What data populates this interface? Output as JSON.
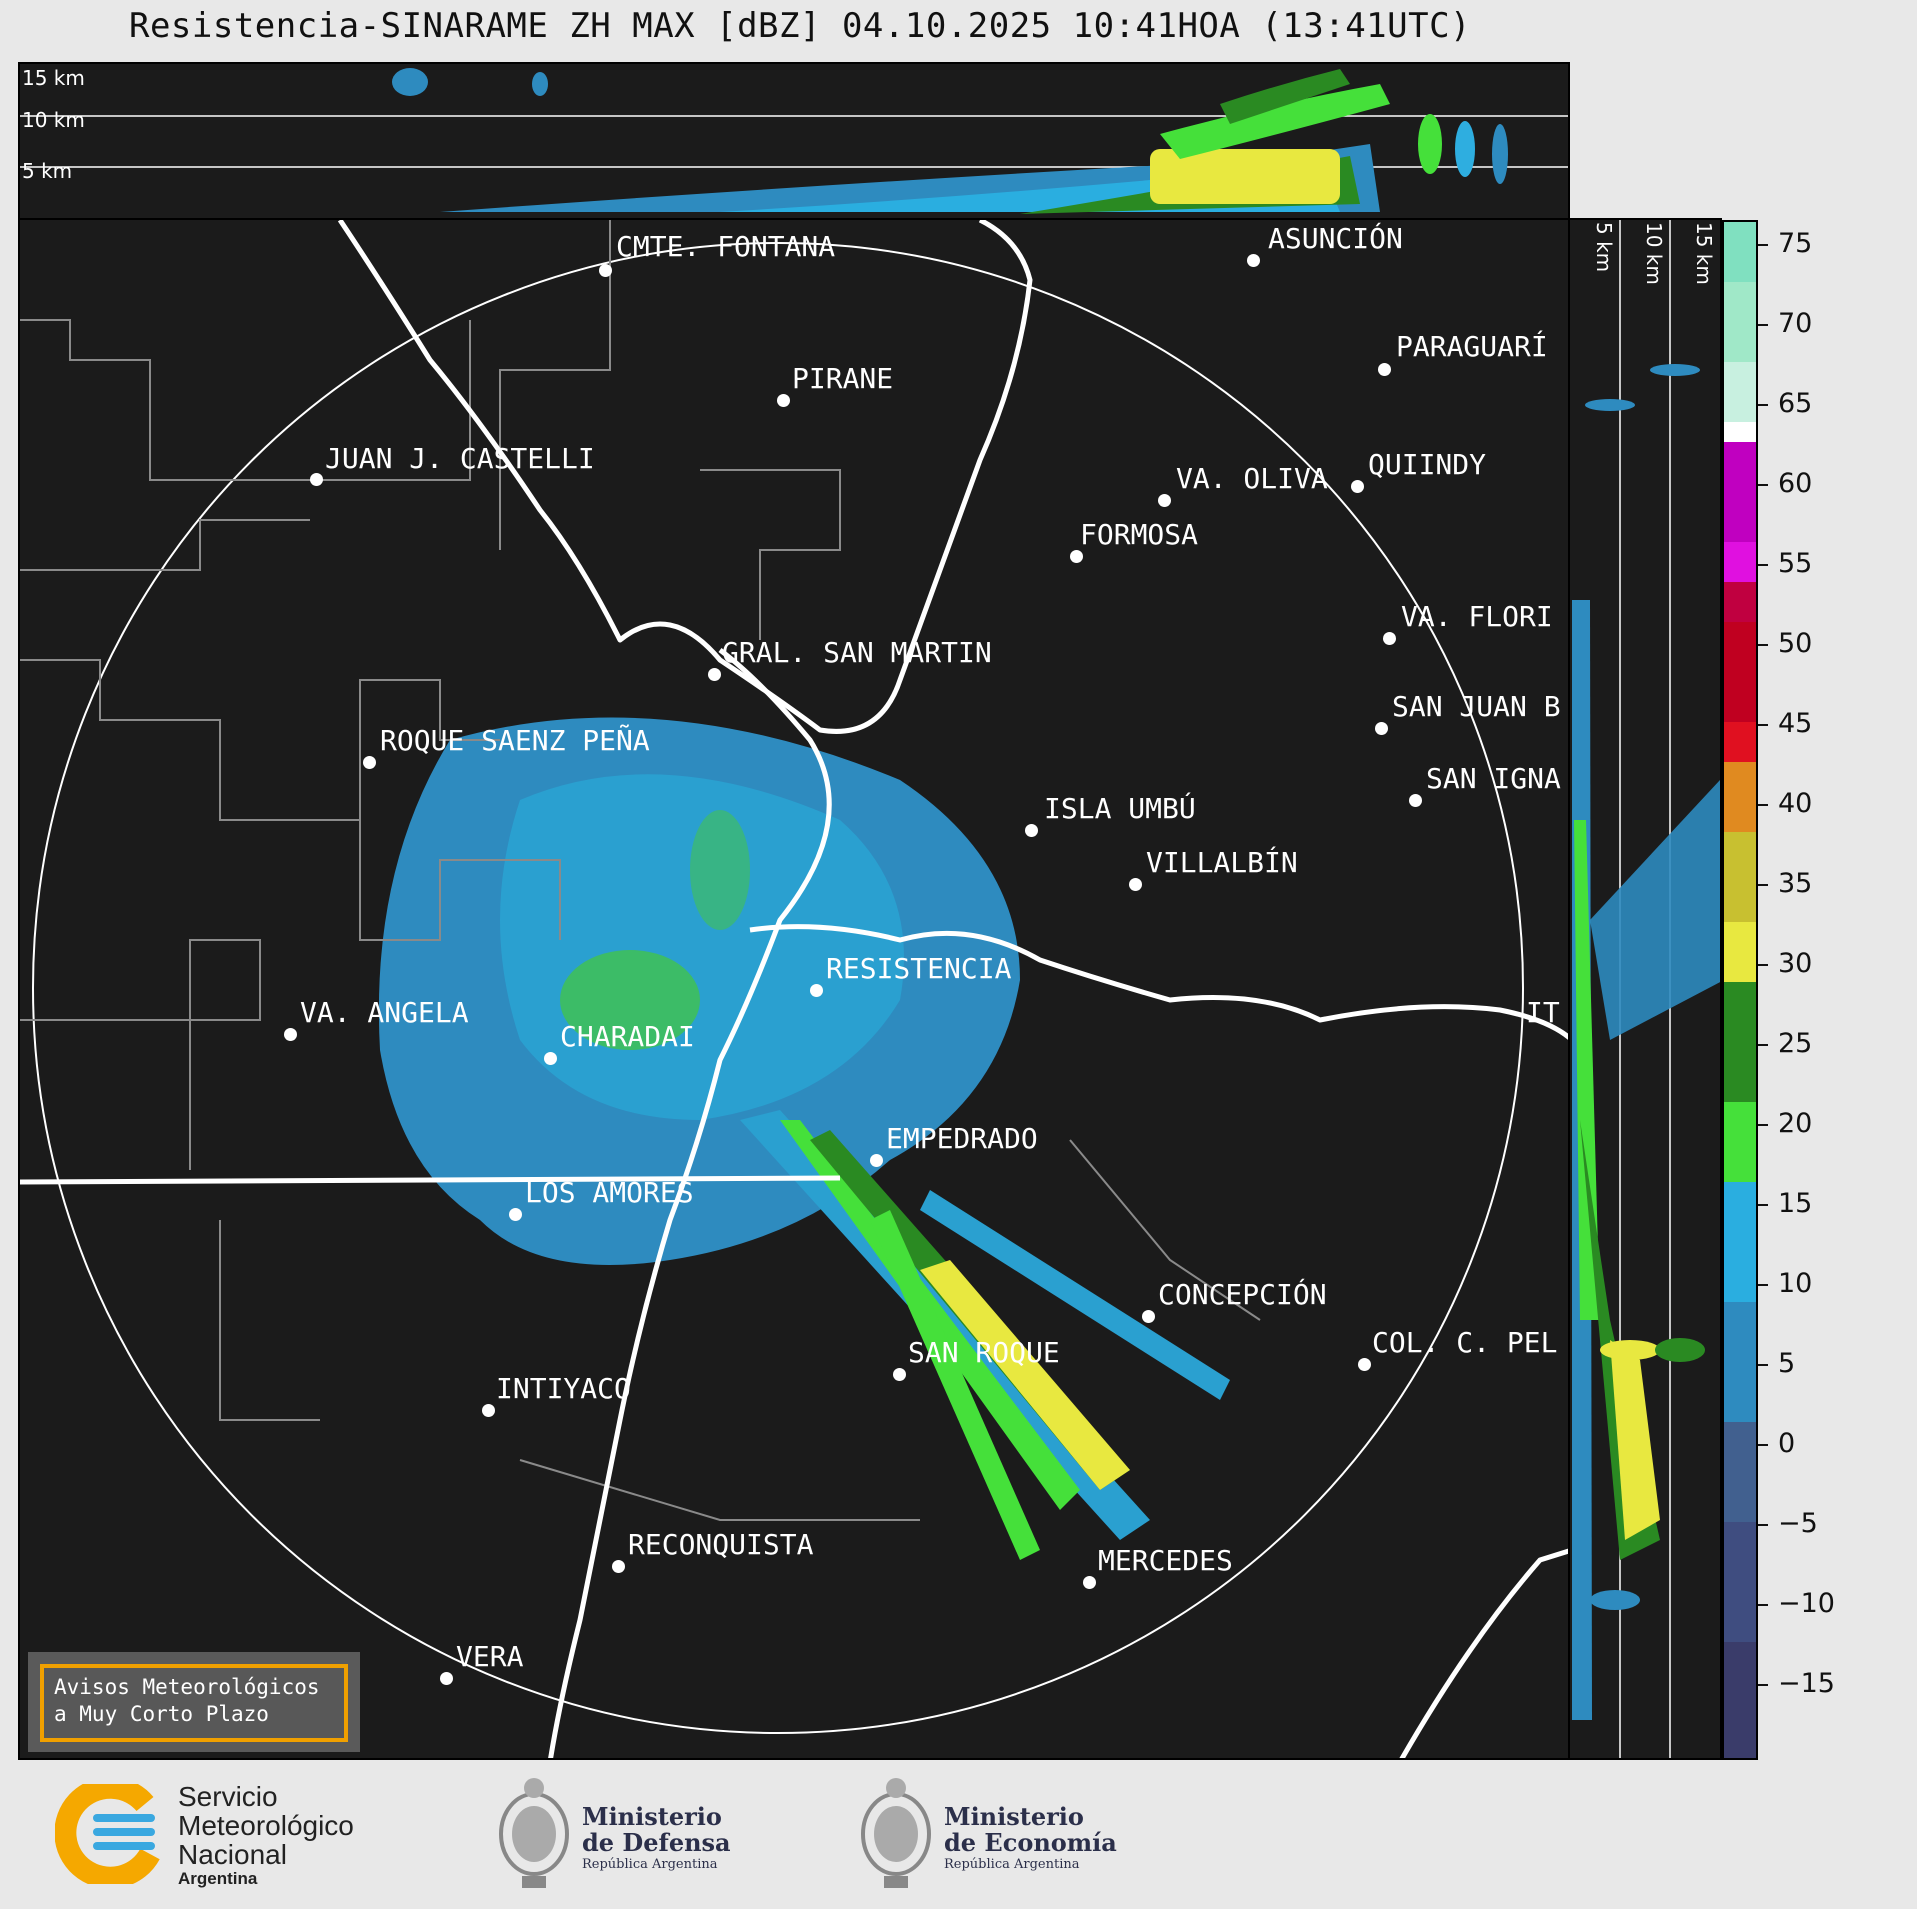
{
  "title": "Resistencia-SINARAME ZH MAX [dBZ] 04.10.2025 10:41HOA (13:41UTC)",
  "top_panel": {
    "alt_labels": [
      "15 km",
      "10 km",
      "5 km"
    ]
  },
  "side_panel": {
    "alt_labels": [
      "5 km",
      "10 km",
      "15 km"
    ]
  },
  "cities": [
    {
      "name": "CMTE. FONTANA"
    },
    {
      "name": "ASUNCIÓN"
    },
    {
      "name": "PARAGUARÍ"
    },
    {
      "name": "PIRANE"
    },
    {
      "name": "JUAN J. CASTELLI"
    },
    {
      "name": "VA. OLIVA"
    },
    {
      "name": "QUIINDY"
    },
    {
      "name": "FORMOSA"
    },
    {
      "name": "VA. FLORI"
    },
    {
      "name": "GRAL. SAN MARTIN"
    },
    {
      "name": "SAN JUAN B"
    },
    {
      "name": "ROQUE SAENZ PEÑA"
    },
    {
      "name": "SAN IGNA"
    },
    {
      "name": "ISLA UMBÚ"
    },
    {
      "name": "VILLALBÍN"
    },
    {
      "name": "RESISTENCIA"
    },
    {
      "name": "VA. ANGELA"
    },
    {
      "name": "CHARADAI"
    },
    {
      "name": "IT"
    },
    {
      "name": "EMPEDRADO"
    },
    {
      "name": "LOS AMORES"
    },
    {
      "name": "CONCEPCIÓN"
    },
    {
      "name": "SAN ROQUE"
    },
    {
      "name": "COL. C. PEL"
    },
    {
      "name": "INTIYACO"
    },
    {
      "name": "RECONQUISTA"
    },
    {
      "name": "MERCEDES"
    },
    {
      "name": "VERA"
    }
  ],
  "colorbar": {
    "unit": "dBZ",
    "ticks": [
      "75",
      "70",
      "65",
      "60",
      "55",
      "50",
      "45",
      "40",
      "35",
      "30",
      "25",
      "20",
      "15",
      "10",
      "5",
      "0",
      "−5",
      "−10",
      "−15"
    ],
    "colors": {
      "n15": "#3a3c6a",
      "n10": "#3f4d80",
      "n5": "#41608f",
      "z0": "#3b77a6",
      "p5": "#2e8bbf",
      "p10": "#2a9ccc",
      "p15": "#2eaee0",
      "p20": "#45e03a",
      "p25": "#2a8a22",
      "p30": "#e8e840",
      "p35": "#c8c030",
      "p40": "#e08a20",
      "p45": "#e01020",
      "p50": "#c00020",
      "p55": "#e010e0",
      "p60": "#ffffff",
      "p65": "#c8f0e0",
      "p70": "#a0e8c8",
      "p75": "#80e0c0"
    }
  },
  "alerts": {
    "line1": "Avisos Meteorológicos",
    "line2": "a Muy Corto Plazo"
  },
  "footer": {
    "smn": {
      "line1": "Servicio",
      "line2": "Meteorológico",
      "line3": "Nacional",
      "line4": "Argentina",
      "accent": "#f5a800",
      "blue": "#3aa8e0"
    },
    "defensa": {
      "line1": "Ministerio",
      "line2": "de Defensa",
      "line3": "República Argentina"
    },
    "economia": {
      "line1": "Ministerio",
      "line2": "de Economía",
      "line3": "República Argentina"
    }
  }
}
